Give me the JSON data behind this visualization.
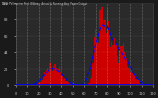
{
  "title": "Solar PV/Inverter Performance West Array Actual & Running Average Power Output",
  "bg_color": "#1a1a1a",
  "plot_bg_color": "#2a2a2a",
  "bar_color": "#cc0000",
  "avg_line_color": "#0000ff",
  "grid_color": "#ffffff",
  "text_color": "#cccccc",
  "n_bars": 120,
  "bar_peak_profile": [
    0,
    0,
    0,
    0,
    0,
    0,
    0,
    0,
    0,
    0,
    0,
    0,
    0,
    0,
    0,
    0,
    0,
    0,
    0,
    0,
    2,
    3,
    5,
    8,
    12,
    15,
    18,
    20,
    22,
    25,
    28,
    30,
    25,
    20,
    22,
    24,
    26,
    28,
    22,
    18,
    15,
    12,
    10,
    8,
    6,
    5,
    4,
    3,
    2,
    1,
    0,
    0,
    0,
    0,
    0,
    0,
    0,
    0,
    0,
    0,
    0,
    0,
    0,
    0,
    3,
    8,
    15,
    25,
    35,
    50,
    65,
    75,
    80,
    85,
    90,
    95,
    98,
    100,
    95,
    90,
    85,
    80,
    75,
    70,
    65,
    60,
    55,
    50,
    45,
    40,
    38,
    42,
    45,
    50,
    48,
    45,
    40,
    38,
    35,
    30,
    25,
    20,
    18,
    15,
    12,
    10,
    8,
    6,
    4,
    2,
    1,
    0,
    0,
    0,
    0,
    0,
    0,
    0,
    0,
    0
  ],
  "ylim": [
    0,
    110
  ],
  "xlim": [
    0,
    120
  ]
}
